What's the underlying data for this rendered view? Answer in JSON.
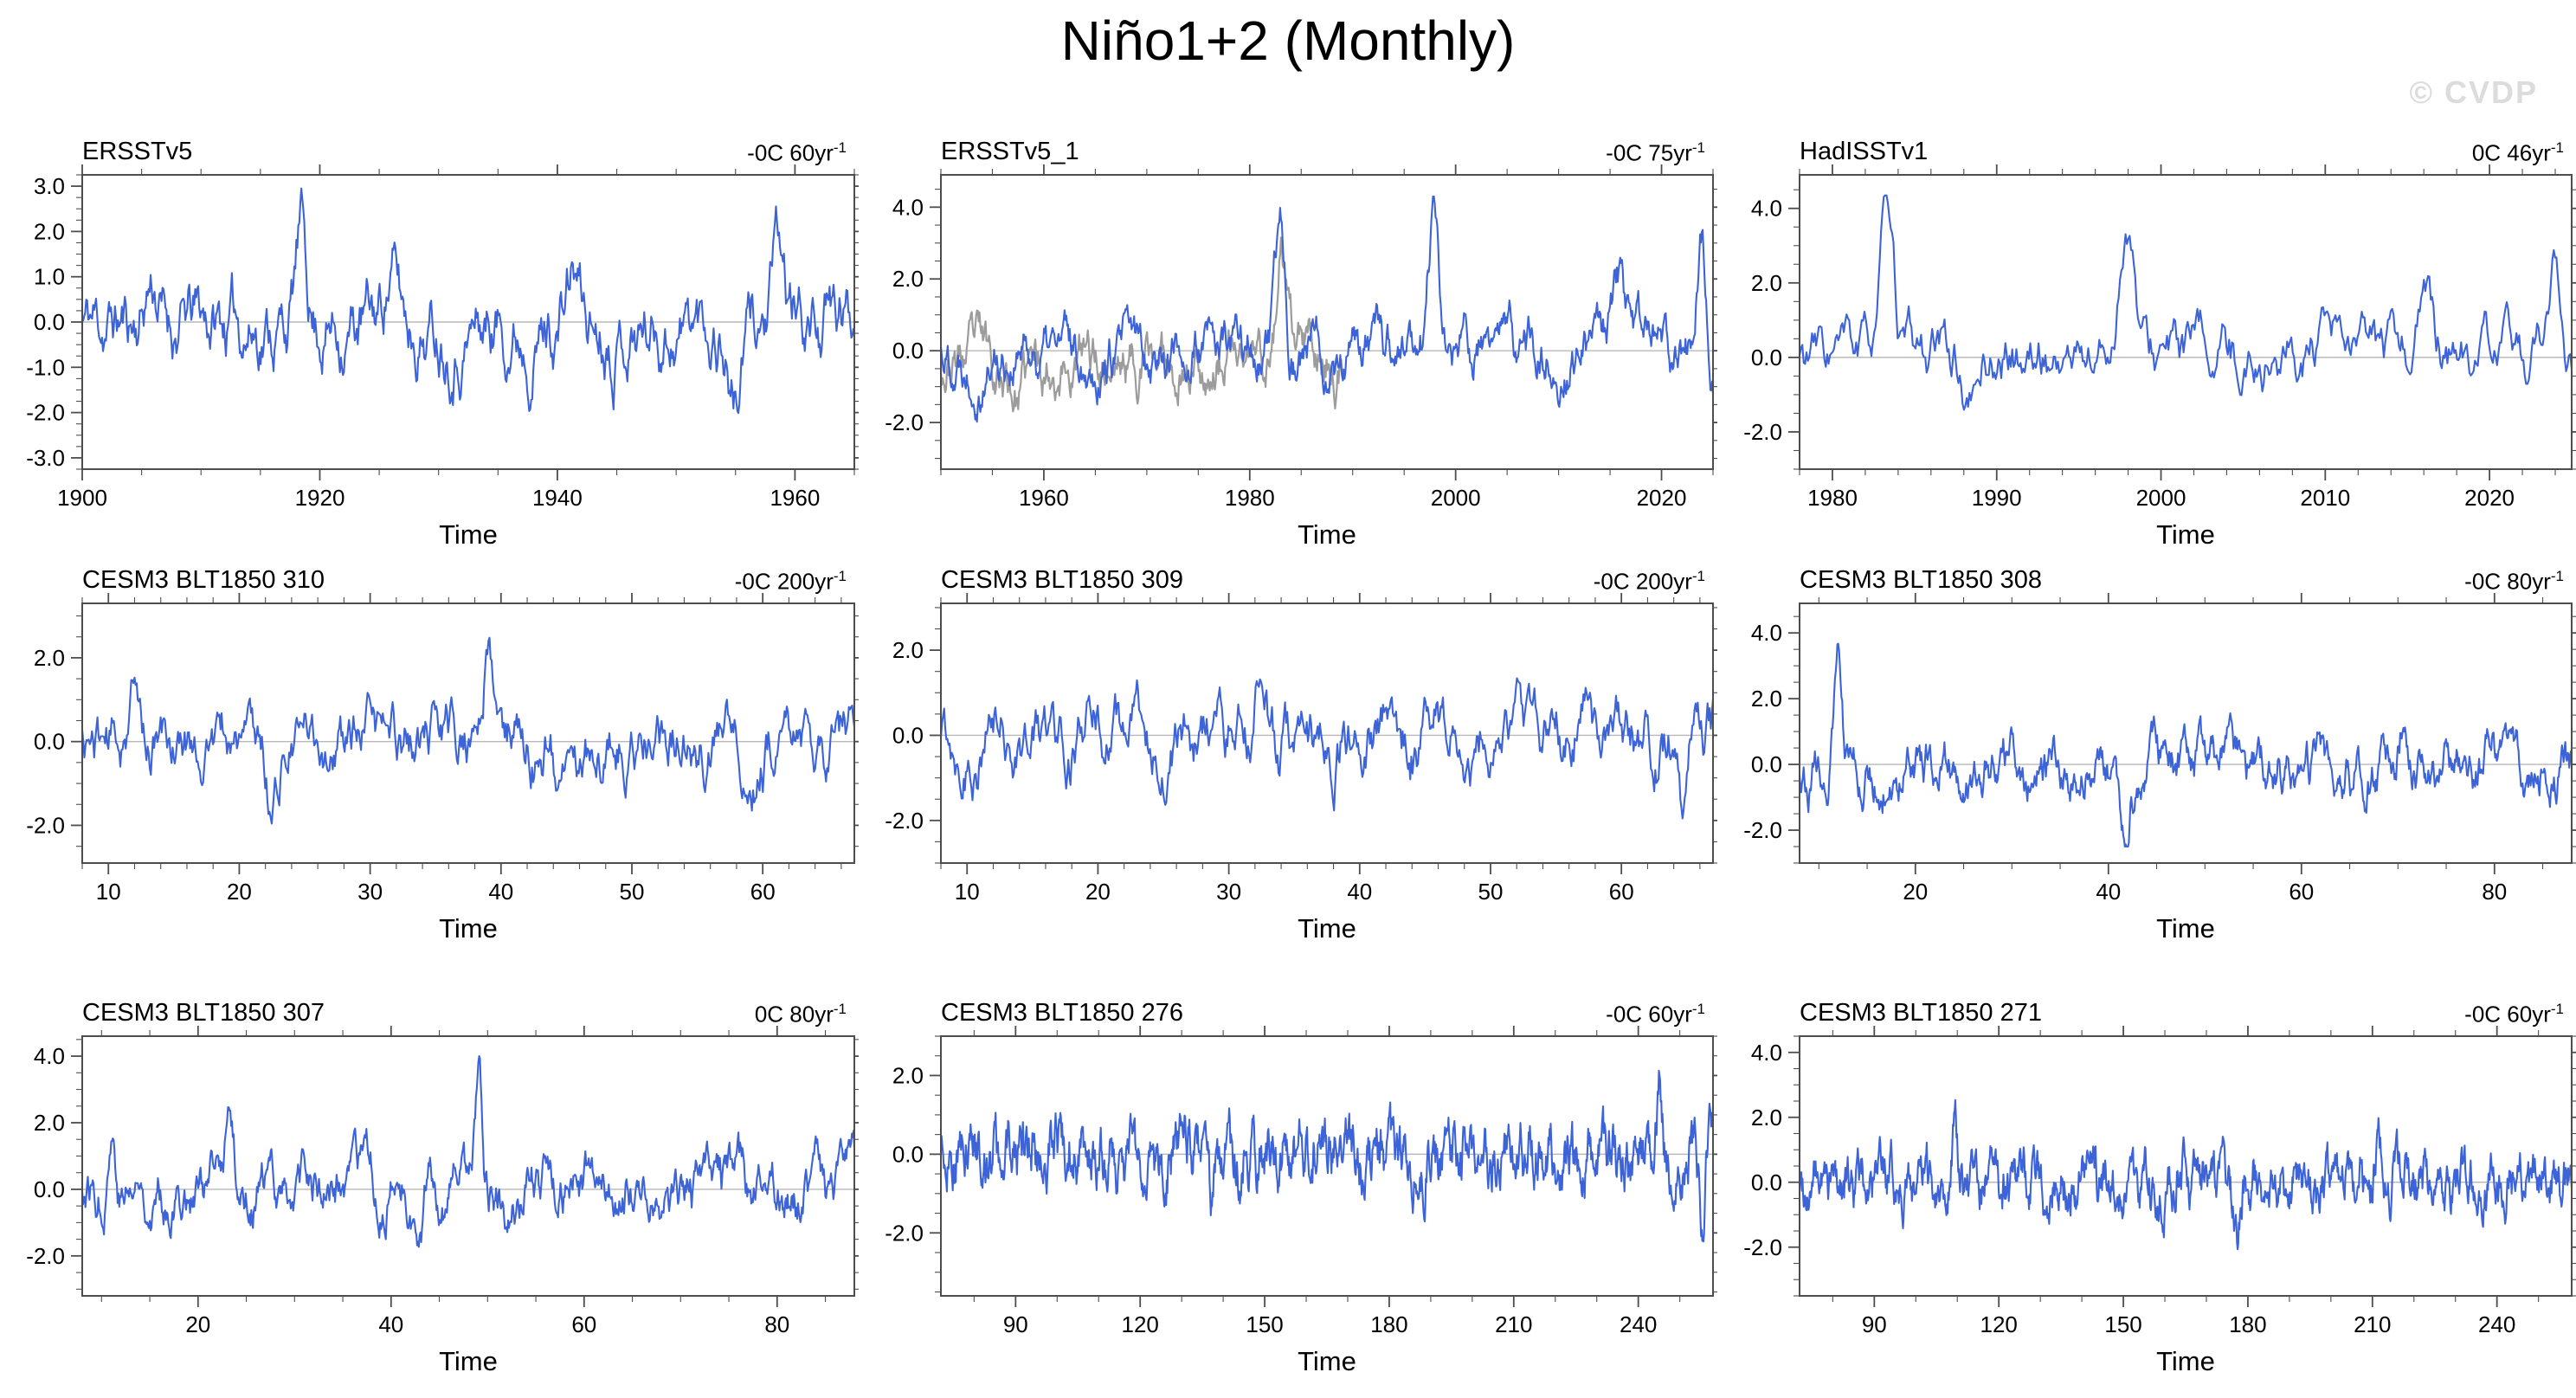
{
  "page": {
    "title": "Niño1+2 (Monthly)",
    "watermark": "© CVDP"
  },
  "colors": {
    "series_blue": "#3c63d8",
    "series_gray": "#9c9c9c",
    "zero_line": "#b8b8b8",
    "frame": "#4d4d4d",
    "watermark": "#dcdcdc",
    "text": "#000000"
  },
  "chart_data": {
    "figure_title": "Niño1+2 (Monthly)",
    "type": "line",
    "grid": "off",
    "legend": "none",
    "description": "3x3 grid of monthly Niño1+2 SST anomaly time series (degC) with linear trend noted per panel; blue line = anomaly, thin gray horizontal line = 0; panel ERSSTv5_1 also shows a gray companion series over its early half.",
    "panels": [
      {
        "name": "ERSSTv5",
        "trend": "-0C 60yr",
        "trend_exp": "-1",
        "xlabel": "Time",
        "x": {
          "min": 1900,
          "max": 1965,
          "majors": [
            1900,
            1920,
            1940,
            1960
          ],
          "labels": [
            "1900",
            "1920",
            "1940",
            "1960"
          ],
          "minor_step": 5
        },
        "y": {
          "min": -3.25,
          "max": 3.25,
          "majors": [
            3,
            2,
            1,
            0,
            -1,
            -2,
            -3
          ],
          "labels": [
            "3.0",
            "2.0",
            "1.0",
            "0.0",
            "-1.0",
            "-2.0",
            "-3.0"
          ],
          "minor_step": 0.25
        },
        "series": {
          "seed": 11,
          "n": 780,
          "ar": 0.9,
          "sigma": 0.45,
          "clip": [
            -2.85,
            2.95
          ],
          "spikes": [
            {
              "f": 0.283,
              "a": 1.9,
              "w": 0.01
            },
            {
              "f": 0.09,
              "a": 1.0,
              "w": 0.012
            },
            {
              "f": 0.4,
              "a": 1.2,
              "w": 0.012
            },
            {
              "f": 0.635,
              "a": 1.1,
              "w": 0.012
            },
            {
              "f": 0.845,
              "a": -1.6,
              "w": 0.012
            },
            {
              "f": 0.9,
              "a": 1.3,
              "w": 0.01
            }
          ]
        },
        "extra_series": []
      },
      {
        "name": "ERSSTv5_1",
        "trend": "-0C 75yr",
        "trend_exp": "-1",
        "xlabel": "Time",
        "x": {
          "min": 1950,
          "max": 2025,
          "majors": [
            1960,
            1980,
            2000,
            2020
          ],
          "labels": [
            "1960",
            "1980",
            "2000",
            "2020"
          ],
          "minor_step": 5
        },
        "y": {
          "min": -3.3,
          "max": 4.9,
          "majors": [
            4,
            2,
            0,
            -2
          ],
          "labels": [
            "4.0",
            "2.0",
            "0.0",
            "-2.0"
          ],
          "minor_step": 0.5
        },
        "series": {
          "seed": 22,
          "n": 900,
          "ar": 0.9,
          "sigma": 0.42,
          "clip": [
            -2.6,
            4.3
          ],
          "spikes": [
            {
              "f": 0.44,
              "a": 3.4,
              "w": 0.008
            },
            {
              "f": 0.637,
              "a": 3.6,
              "w": 0.009
            },
            {
              "f": 0.877,
              "a": 1.6,
              "w": 0.01
            },
            {
              "f": 0.984,
              "a": 3.5,
              "w": 0.008
            }
          ]
        },
        "extra_series": [
          {
            "seed": 23,
            "n": 900,
            "ar": 0.9,
            "sigma": 0.44,
            "clip": [
              -3.0,
              3.9
            ],
            "offset": -0.25,
            "span": [
              0,
              0.52
            ],
            "spikes": [
              {
                "f": 0.44,
                "a": 3.0,
                "w": 0.008
              },
              {
                "f": 0.1,
                "a": -0.8,
                "w": 0.02
              }
            ]
          }
        ]
      },
      {
        "name": "HadISSTv1",
        "trend": "0C 46yr",
        "trend_exp": "-1",
        "xlabel": "Time",
        "x": {
          "min": 1978,
          "max": 2025,
          "majors": [
            1980,
            1990,
            2000,
            2010,
            2020
          ],
          "labels": [
            "1980",
            "1990",
            "2000",
            "2010",
            "2020"
          ],
          "minor_step": 2
        },
        "y": {
          "min": -3.0,
          "max": 4.9,
          "majors": [
            4,
            2,
            0,
            -2
          ],
          "labels": [
            "4.0",
            "2.0",
            "0.0",
            "-2.0"
          ],
          "minor_step": 0.5
        },
        "series": {
          "seed": 33,
          "n": 560,
          "ar": 0.88,
          "sigma": 0.45,
          "clip": [
            -2.4,
            4.35
          ],
          "spikes": [
            {
              "f": 0.111,
              "a": 3.6,
              "w": 0.012
            },
            {
              "f": 0.423,
              "a": 3.8,
              "w": 0.013
            },
            {
              "f": 0.22,
              "a": -1.4,
              "w": 0.012
            },
            {
              "f": 0.806,
              "a": 1.7,
              "w": 0.012
            },
            {
              "f": 0.977,
              "a": 2.0,
              "w": 0.012
            }
          ]
        },
        "extra_series": []
      },
      {
        "name": "CESM3 BLT1850 310",
        "trend": "-0C 200yr",
        "trend_exp": "-1",
        "xlabel": "Time",
        "x": {
          "min": 8,
          "max": 67,
          "majors": [
            10,
            20,
            30,
            40,
            50,
            60
          ],
          "labels": [
            "10",
            "20",
            "30",
            "40",
            "50",
            "60"
          ],
          "minor_step": 2
        },
        "y": {
          "min": -2.9,
          "max": 3.3,
          "majors": [
            2,
            0,
            -2
          ],
          "labels": [
            "2.0",
            "0.0",
            "-2.0"
          ],
          "minor_step": 0.5
        },
        "series": {
          "seed": 44,
          "n": 710,
          "ar": 0.9,
          "sigma": 0.42,
          "clip": [
            -2.55,
            3.1
          ],
          "spikes": [
            {
              "f": 0.525,
              "a": 2.1,
              "w": 0.008
            },
            {
              "f": 0.62,
              "a": -1.5,
              "w": 0.009
            },
            {
              "f": 0.245,
              "a": -1.3,
              "w": 0.01
            },
            {
              "f": 0.065,
              "a": 1.2,
              "w": 0.01
            }
          ]
        },
        "extra_series": []
      },
      {
        "name": "CESM3 BLT1850 309",
        "trend": "-0C 200yr",
        "trend_exp": "-1",
        "xlabel": "Time",
        "x": {
          "min": 8,
          "max": 67,
          "majors": [
            10,
            20,
            30,
            40,
            50,
            60
          ],
          "labels": [
            "10",
            "20",
            "30",
            "40",
            "50",
            "60"
          ],
          "minor_step": 2
        },
        "y": {
          "min": -3.0,
          "max": 3.1,
          "majors": [
            2,
            0,
            -2
          ],
          "labels": [
            "2.0",
            "0.0",
            "-2.0"
          ],
          "minor_step": 0.5
        },
        "series": {
          "seed": 55,
          "n": 710,
          "ar": 0.9,
          "sigma": 0.45,
          "clip": [
            -2.7,
            2.85
          ],
          "spikes": [
            {
              "f": 0.415,
              "a": 1.5,
              "w": 0.01
            },
            {
              "f": 0.83,
              "a": 1.6,
              "w": 0.01
            },
            {
              "f": 0.96,
              "a": -1.5,
              "w": 0.008
            }
          ]
        },
        "extra_series": []
      },
      {
        "name": "CESM3 BLT1850 308",
        "trend": "-0C 80yr",
        "trend_exp": "-1",
        "xlabel": "Time",
        "x": {
          "min": 8,
          "max": 88,
          "majors": [
            20,
            40,
            60,
            80
          ],
          "labels": [
            "20",
            "40",
            "60",
            "80"
          ],
          "minor_step": 5
        },
        "y": {
          "min": -3.0,
          "max": 4.9,
          "majors": [
            4,
            2,
            0,
            -2
          ],
          "labels": [
            "4.0",
            "2.0",
            "0.0",
            "-2.0"
          ],
          "minor_step": 0.5
        },
        "series": {
          "seed": 66,
          "n": 960,
          "ar": 0.9,
          "sigma": 0.42,
          "clip": [
            -2.5,
            4.5
          ],
          "spikes": [
            {
              "f": 0.05,
              "a": 3.4,
              "w": 0.007
            },
            {
              "f": 0.42,
              "a": -1.2,
              "w": 0.01
            },
            {
              "f": 0.78,
              "a": 1.3,
              "w": 0.008
            }
          ]
        },
        "extra_series": []
      },
      {
        "name": "CESM3 BLT1850 307",
        "trend": "0C 80yr",
        "trend_exp": "-1",
        "xlabel": "Time",
        "x": {
          "min": 8,
          "max": 88,
          "majors": [
            20,
            40,
            60,
            80
          ],
          "labels": [
            "20",
            "40",
            "60",
            "80"
          ],
          "minor_step": 5
        },
        "y": {
          "min": -3.2,
          "max": 4.6,
          "majors": [
            4,
            2,
            0,
            -2
          ],
          "labels": [
            "4.0",
            "2.0",
            "0.0",
            "-2.0"
          ],
          "minor_step": 0.5
        },
        "series": {
          "seed": 77,
          "n": 960,
          "ar": 0.9,
          "sigma": 0.43,
          "clip": [
            -2.9,
            4.0
          ],
          "spikes": [
            {
              "f": 0.513,
              "a": 3.0,
              "w": 0.006
            },
            {
              "f": 0.038,
              "a": 2.1,
              "w": 0.007
            },
            {
              "f": 0.19,
              "a": 2.1,
              "w": 0.007
            },
            {
              "f": 0.437,
              "a": -1.9,
              "w": 0.008
            },
            {
              "f": 0.95,
              "a": 1.5,
              "w": 0.008
            }
          ]
        },
        "extra_series": []
      },
      {
        "name": "CESM3 BLT1850 276",
        "trend": "-0C 60yr",
        "trend_exp": "-1",
        "xlabel": "Time",
        "x": {
          "min": 72,
          "max": 258,
          "majors": [
            90,
            120,
            150,
            180,
            210,
            240
          ],
          "labels": [
            "90",
            "120",
            "150",
            "180",
            "210",
            "240"
          ],
          "minor_step": 10
        },
        "y": {
          "min": -3.6,
          "max": 3.0,
          "majors": [
            2,
            0,
            -2
          ],
          "labels": [
            "2.0",
            "0.0",
            "-2.0"
          ],
          "minor_step": 0.5
        },
        "series": {
          "seed": 88,
          "n": 1300,
          "ar": 0.82,
          "sigma": 0.5,
          "clip": [
            -3.3,
            2.9
          ],
          "spikes": [
            {
              "f": 0.93,
              "a": 1.8,
              "w": 0.005
            },
            {
              "f": 0.35,
              "a": -1.5,
              "w": 0.005
            },
            {
              "f": 0.985,
              "a": -2.2,
              "w": 0.004
            }
          ]
        },
        "extra_series": []
      },
      {
        "name": "CESM3 BLT1850 271",
        "trend": "-0C 60yr",
        "trend_exp": "-1",
        "xlabel": "Time",
        "x": {
          "min": 72,
          "max": 258,
          "majors": [
            90,
            120,
            150,
            180,
            210,
            240
          ],
          "labels": [
            "90",
            "120",
            "150",
            "180",
            "210",
            "240"
          ],
          "minor_step": 10
        },
        "y": {
          "min": -3.5,
          "max": 4.5,
          "majors": [
            4,
            2,
            0,
            -2
          ],
          "labels": [
            "4.0",
            "2.0",
            "0.0",
            "-2.0"
          ],
          "minor_step": 0.5
        },
        "series": {
          "seed": 99,
          "n": 1300,
          "ar": 0.82,
          "sigma": 0.52,
          "clip": [
            -3.2,
            3.6
          ],
          "spikes": [
            {
              "f": 0.2,
              "a": 2.0,
              "w": 0.005
            },
            {
              "f": 0.565,
              "a": -1.8,
              "w": 0.005
            },
            {
              "f": 0.75,
              "a": 1.6,
              "w": 0.005
            }
          ]
        },
        "extra_series": []
      }
    ]
  }
}
